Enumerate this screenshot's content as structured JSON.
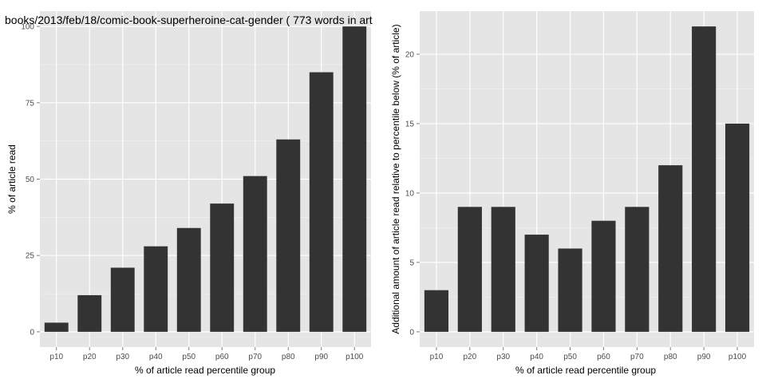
{
  "chart_data": [
    {
      "type": "bar",
      "title": "books/2013/feb/18/comic-book-superheroine-cat-gender ( 773 words in art",
      "xlabel": "% of article read percentile group",
      "ylabel": "% of article read",
      "categories": [
        "p10",
        "p20",
        "p30",
        "p40",
        "p50",
        "p60",
        "p70",
        "p80",
        "p90",
        "p100"
      ],
      "values": [
        3,
        12,
        21,
        28,
        34,
        42,
        51,
        63,
        85,
        100
      ],
      "ylim": [
        -5,
        105
      ],
      "yticks": [
        0,
        25,
        50,
        75,
        100
      ],
      "grid": true,
      "bar_color": "#333333",
      "panel_color": "#e5e5e5"
    },
    {
      "type": "bar",
      "title": "",
      "xlabel": "% of article read percentile group",
      "ylabel": "Additional amount of article read relative to percentile below (% of article)",
      "categories": [
        "p10",
        "p20",
        "p30",
        "p40",
        "p50",
        "p60",
        "p70",
        "p80",
        "p90",
        "p100"
      ],
      "values": [
        3,
        9,
        9,
        7,
        6,
        8,
        9,
        12,
        22,
        15
      ],
      "ylim": [
        -1.1,
        23.1
      ],
      "yticks": [
        0,
        5,
        10,
        15,
        20
      ],
      "grid": true,
      "bar_color": "#333333",
      "panel_color": "#e5e5e5"
    }
  ]
}
